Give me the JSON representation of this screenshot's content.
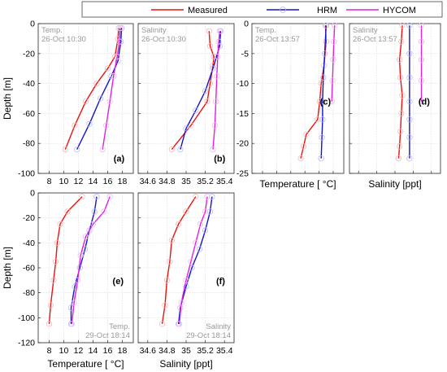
{
  "legend": {
    "entries": [
      {
        "label": "Measured",
        "color": "#e8130f"
      },
      {
        "label": "HRM",
        "color": "#1515c8"
      },
      {
        "label": "HYCOM",
        "color": "#e020e0"
      }
    ]
  },
  "chart_data": [
    {
      "type": "line",
      "panel_label": "(a)",
      "title": "Temp.",
      "subtitle": "26-Oct 10:30",
      "xlabel": "",
      "ylabel": "Depth [m]",
      "xlim": [
        6.5,
        19.5
      ],
      "ylim": [
        -100,
        0
      ],
      "xticks": [
        8,
        10,
        12,
        14,
        16,
        18
      ],
      "yticks": [
        0,
        -20,
        -40,
        -60,
        -80,
        -100
      ],
      "grid": true,
      "series": [
        {
          "name": "Measured",
          "x": [
            17.5,
            17.4,
            17.0,
            16.0,
            14.5,
            13.0,
            11.5,
            10.2
          ],
          "y": [
            -3,
            -10,
            -22,
            -30,
            -40,
            -52,
            -68,
            -84
          ]
        },
        {
          "name": "HRM",
          "x": [
            17.9,
            17.8,
            17.4,
            16.5,
            15.0,
            13.5,
            11.8
          ],
          "y": [
            -3,
            -12,
            -25,
            -35,
            -50,
            -67,
            -84
          ]
        },
        {
          "name": "HYCOM",
          "x": [
            17.7,
            17.6,
            17.3,
            16.8,
            16.3,
            15.8,
            15.3
          ],
          "y": [
            -3,
            -12,
            -22,
            -35,
            -52,
            -68,
            -84
          ]
        }
      ]
    },
    {
      "type": "line",
      "panel_label": "(b)",
      "title": "Salinity",
      "subtitle": "26-Oct 10:30",
      "xlabel": "",
      "ylabel": "",
      "xlim": [
        34.5,
        35.5
      ],
      "ylim": [
        -100,
        0
      ],
      "xticks": [
        34.6,
        34.8,
        35,
        35.2,
        35.4
      ],
      "yticks": [
        0,
        -20,
        -40,
        -60,
        -80,
        -100
      ],
      "grid": true,
      "series": [
        {
          "name": "Measured",
          "x": [
            35.24,
            35.25,
            35.29,
            35.28,
            35.25,
            35.22,
            35.05,
            34.85
          ],
          "y": [
            -5,
            -15,
            -22,
            -28,
            -40,
            -52,
            -68,
            -84
          ]
        },
        {
          "name": "HRM",
          "x": [
            35.36,
            35.35,
            35.28,
            35.2,
            35.1,
            35.0,
            34.94
          ],
          "y": [
            -5,
            -15,
            -30,
            -45,
            -58,
            -70,
            -84
          ]
        },
        {
          "name": "HYCOM",
          "x": [
            35.35,
            35.34,
            35.33,
            35.32,
            35.31,
            35.3,
            35.28
          ],
          "y": [
            -5,
            -12,
            -22,
            -35,
            -52,
            -68,
            -84
          ]
        }
      ]
    },
    {
      "type": "line",
      "panel_label": "(c)",
      "title": "Temp.",
      "subtitle": "26-Oct 13:57",
      "xlabel": "Temperature [ °C]",
      "ylabel": "",
      "xlim": [
        6.5,
        19.5
      ],
      "ylim": [
        -25,
        0
      ],
      "xticks": [
        8,
        10,
        12,
        14,
        16,
        18
      ],
      "yticks": [
        0,
        -5,
        -10,
        -15,
        -20,
        -25
      ],
      "grid": true,
      "series": [
        {
          "name": "Measured",
          "x": [
            16.9,
            17.0,
            16.7,
            16.3,
            16.1,
            15.8,
            14.2,
            13.8,
            13.4
          ],
          "y": [
            -0.3,
            -3,
            -7,
            -10,
            -13,
            -16,
            -18.5,
            -20.5,
            -22.5
          ]
        },
        {
          "name": "HRM",
          "x": [
            17.0,
            16.8,
            16.6,
            16.5,
            16.5,
            16.4,
            16.3
          ],
          "y": [
            -0.3,
            -5,
            -9,
            -13,
            -16,
            -19,
            -22.5
          ]
        },
        {
          "name": "HYCOM",
          "x": [
            18.2,
            18.1,
            18.0,
            17.9,
            17.8
          ],
          "y": [
            -0.3,
            -3,
            -6,
            -9.5,
            -13
          ]
        }
      ]
    },
    {
      "type": "line",
      "panel_label": "(d)",
      "title": "Salinity",
      "subtitle": "26-Oct 13:57",
      "xlabel": "Salinity [ppt]",
      "ylabel": "",
      "xlim": [
        34.5,
        35.5
      ],
      "ylim": [
        -25,
        0
      ],
      "xticks": [
        34.6,
        34.8,
        35,
        35.2,
        35.4
      ],
      "yticks": [
        0,
        -5,
        -10,
        -15,
        -20,
        -25
      ],
      "grid": true,
      "series": [
        {
          "name": "Measured",
          "x": [
            35.08,
            35.07,
            35.05,
            35.06,
            35.08,
            35.07,
            35.06,
            35.05,
            35.04
          ],
          "y": [
            -0.3,
            -3,
            -6,
            -9,
            -12,
            -15,
            -18,
            -20.5,
            -22.5
          ]
        },
        {
          "name": "HRM",
          "x": [
            35.16,
            35.16,
            35.16,
            35.16,
            35.16,
            35.16,
            35.16
          ],
          "y": [
            -0.3,
            -5,
            -9,
            -13,
            -16,
            -19,
            -22.5
          ]
        },
        {
          "name": "HYCOM",
          "x": [
            35.29,
            35.29,
            35.29,
            35.29,
            35.29
          ],
          "y": [
            -0.3,
            -3,
            -6,
            -9.5,
            -13
          ]
        }
      ]
    },
    {
      "type": "line",
      "panel_label": "(e)",
      "title": "Temp.",
      "subtitle": "29-Oct 18:14",
      "xlabel": "Temperature [ °C]",
      "ylabel": "Depth [m]",
      "xlim": [
        6.5,
        19.5
      ],
      "ylim": [
        -120,
        0
      ],
      "xticks": [
        8,
        10,
        12,
        14,
        16,
        18
      ],
      "yticks": [
        0,
        -20,
        -40,
        -60,
        -80,
        -100,
        -120
      ],
      "grid": true,
      "series": [
        {
          "name": "Measured",
          "x": [
            12.5,
            10.5,
            9.5,
            9.1,
            8.9,
            8.6,
            8.2,
            8.0
          ],
          "y": [
            -3,
            -15,
            -25,
            -40,
            -55,
            -70,
            -90,
            -105
          ]
        },
        {
          "name": "HRM",
          "x": [
            14.5,
            14.2,
            13.5,
            12.9,
            12.2,
            11.5,
            11.0,
            11.0
          ],
          "y": [
            -3,
            -15,
            -30,
            -45,
            -60,
            -75,
            -92,
            -105
          ]
        },
        {
          "name": "HYCOM",
          "x": [
            16.3,
            15.5,
            14.0,
            13.0,
            12.3,
            11.9,
            11.4,
            11.1
          ],
          "y": [
            -3,
            -15,
            -25,
            -35,
            -50,
            -70,
            -88,
            -105
          ]
        }
      ]
    },
    {
      "type": "line",
      "panel_label": "(f)",
      "title": "Salinity",
      "subtitle": "29-Oct 18:14",
      "xlabel": "Salinity [ppt]",
      "ylabel": "",
      "xlim": [
        34.5,
        35.5
      ],
      "ylim": [
        -120,
        0
      ],
      "xticks": [
        34.6,
        34.8,
        35,
        35.2,
        35.4
      ],
      "yticks": [
        0,
        -20,
        -40,
        -60,
        -80,
        -100,
        -120
      ],
      "grid": true,
      "series": [
        {
          "name": "Measured",
          "x": [
            35.1,
            35.0,
            34.92,
            34.85,
            34.83,
            34.8,
            34.78,
            34.75
          ],
          "y": [
            -3,
            -15,
            -25,
            -38,
            -55,
            -70,
            -90,
            -105
          ]
        },
        {
          "name": "HRM",
          "x": [
            35.27,
            35.25,
            35.2,
            35.14,
            35.06,
            35.0,
            34.94,
            34.92
          ],
          "y": [
            -3,
            -15,
            -30,
            -45,
            -60,
            -75,
            -92,
            -105
          ]
        },
        {
          "name": "HYCOM",
          "x": [
            35.22,
            35.2,
            35.15,
            35.1,
            35.05,
            35.0,
            34.95,
            34.93
          ],
          "y": [
            -3,
            -15,
            -25,
            -40,
            -55,
            -70,
            -88,
            -105
          ]
        }
      ]
    }
  ]
}
